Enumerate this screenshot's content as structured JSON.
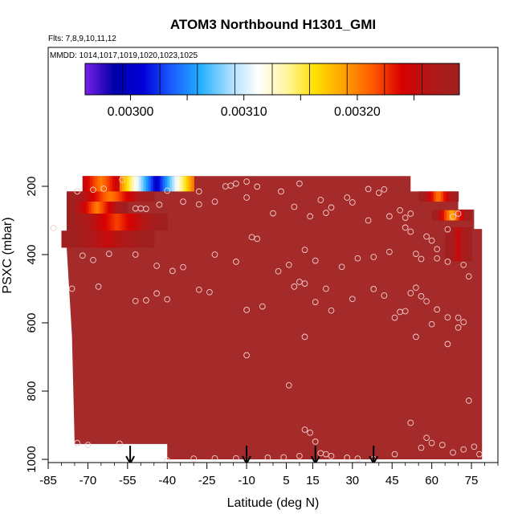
{
  "chart_data": {
    "type": "heatmap",
    "title": "ATOM3 Northbound H1301_GMI",
    "flights_note": "Flts: 7,8,9,10,11,12",
    "dates_note": "MMDD: 1014,1017,1019,1020,1023,1025",
    "xlabel": "Latitude (deg N)",
    "ylabel": "PSXC (mbar)",
    "xlim": [
      -85,
      85
    ],
    "ylim": [
      1000,
      0
    ],
    "x_ticks": [
      -85,
      -70,
      -55,
      -40,
      -25,
      -10,
      5,
      15,
      30,
      45,
      60,
      75
    ],
    "y_ticks": [
      200,
      400,
      600,
      800,
      1000
    ],
    "colorbar": {
      "tick_values": [
        0.003,
        0.0031,
        0.0032
      ],
      "tick_labels": [
        "0.00300",
        "0.00310",
        "0.00320"
      ],
      "colors": [
        "#7a1fe8",
        "#0000a8",
        "#0000d8",
        "#1a5cff",
        "#1fb0ff",
        "#a6dcff",
        "#ffffff",
        "#fff5a0",
        "#ffe000",
        "#ffa000",
        "#ff5800",
        "#d80000",
        "#b01818",
        "#a02020"
      ]
    },
    "background_color": "#a52a2a",
    "gradient_bands": [
      {
        "p": [
          170,
          215
        ],
        "lon": [
          -72,
          -58
        ],
        "value_range": [
          0.0032,
          0.00325
        ]
      },
      {
        "p": [
          170,
          215
        ],
        "lon": [
          -58,
          -30
        ],
        "value_range": [
          0.003,
          0.0032
        ]
      },
      {
        "p": [
          215,
          245
        ],
        "lon": [
          -78,
          -45
        ],
        "value_range": [
          0.0032,
          0.0033
        ]
      },
      {
        "p": [
          245,
          280
        ],
        "lon": [
          -78,
          -55
        ],
        "value_range": [
          0.0032,
          0.0033
        ]
      },
      {
        "p": [
          280,
          330
        ],
        "lon": [
          -78,
          -40
        ],
        "value_range": [
          0.00322,
          0.0033
        ]
      },
      {
        "p": [
          330,
          380
        ],
        "lon": [
          -80,
          -45
        ],
        "value_range": [
          0.00325,
          0.0033
        ]
      },
      {
        "p": [
          215,
          245
        ],
        "lon": [
          55,
          70
        ],
        "value_range": [
          0.0032,
          0.0033
        ]
      },
      {
        "p": [
          270,
          300
        ],
        "lon": [
          60,
          75
        ],
        "value_range": [
          0.00318,
          0.0033
        ]
      },
      {
        "p": [
          320,
          420
        ],
        "lon": [
          65,
          75
        ],
        "value_range": [
          0.00325,
          0.0033
        ]
      }
    ],
    "sample_points": [
      [
        -74,
        215
      ],
      [
        -68,
        210
      ],
      [
        -64,
        207
      ],
      [
        -57,
        181
      ],
      [
        -40,
        213
      ],
      [
        -28,
        215
      ],
      [
        -18,
        200
      ],
      [
        -16,
        198
      ],
      [
        -14,
        192
      ],
      [
        -10,
        186
      ],
      [
        -6,
        201
      ],
      [
        3,
        215
      ],
      [
        10,
        192
      ],
      [
        18,
        240
      ],
      [
        28,
        233
      ],
      [
        36,
        208
      ],
      [
        40,
        219
      ],
      [
        42,
        209
      ],
      [
        48,
        270
      ],
      [
        50,
        292
      ],
      [
        52,
        280
      ],
      [
        -52,
        265
      ],
      [
        -50,
        265
      ],
      [
        -48,
        266
      ],
      [
        -43,
        254
      ],
      [
        -34,
        245
      ],
      [
        -28,
        253
      ],
      [
        -22,
        245
      ],
      [
        -10,
        233
      ],
      [
        0,
        279
      ],
      [
        8,
        260
      ],
      [
        14,
        288
      ],
      [
        20,
        278
      ],
      [
        22,
        262
      ],
      [
        30,
        247
      ],
      [
        36,
        300
      ],
      [
        44,
        288
      ],
      [
        50,
        321
      ],
      [
        52,
        333
      ],
      [
        58,
        347
      ],
      [
        60,
        359
      ],
      [
        62,
        384
      ],
      [
        66,
        326
      ],
      [
        68,
        289
      ],
      [
        70,
        280
      ],
      [
        -83,
        322
      ],
      [
        -72,
        403
      ],
      [
        -68,
        416
      ],
      [
        -62,
        398
      ],
      [
        -52,
        400
      ],
      [
        -44,
        433
      ],
      [
        -38,
        448
      ],
      [
        -34,
        437
      ],
      [
        -22,
        400
      ],
      [
        -14,
        421
      ],
      [
        -8,
        349
      ],
      [
        -6,
        354
      ],
      [
        2,
        449
      ],
      [
        6,
        430
      ],
      [
        12,
        386
      ],
      [
        16,
        418
      ],
      [
        26,
        436
      ],
      [
        32,
        411
      ],
      [
        38,
        407
      ],
      [
        44,
        392
      ],
      [
        54,
        398
      ],
      [
        56,
        413
      ],
      [
        62,
        411
      ],
      [
        66,
        421
      ],
      [
        72,
        430
      ],
      [
        74,
        464
      ],
      [
        -76,
        500
      ],
      [
        -66,
        494
      ],
      [
        -52,
        536
      ],
      [
        -48,
        534
      ],
      [
        -44,
        514
      ],
      [
        -40,
        531
      ],
      [
        -28,
        503
      ],
      [
        -24,
        510
      ],
      [
        -10,
        562
      ],
      [
        -4,
        552
      ],
      [
        8,
        494
      ],
      [
        10,
        480
      ],
      [
        12,
        485
      ],
      [
        16,
        539
      ],
      [
        20,
        500
      ],
      [
        22,
        564
      ],
      [
        30,
        530
      ],
      [
        38,
        501
      ],
      [
        42,
        520
      ],
      [
        46,
        585
      ],
      [
        48,
        568
      ],
      [
        52,
        513
      ],
      [
        54,
        497
      ],
      [
        56,
        522
      ],
      [
        58,
        537
      ],
      [
        62,
        561
      ],
      [
        66,
        584
      ],
      [
        70,
        585
      ],
      [
        72,
        598
      ],
      [
        -10,
        695
      ],
      [
        6,
        783
      ],
      [
        12,
        641
      ],
      [
        50,
        566
      ],
      [
        54,
        641
      ],
      [
        60,
        604
      ],
      [
        66,
        662
      ],
      [
        70,
        614
      ],
      [
        74,
        828
      ],
      [
        -74,
        952
      ],
      [
        -70,
        958
      ],
      [
        -58,
        954
      ],
      [
        -40,
        1003
      ],
      [
        -30,
        998
      ],
      [
        -22,
        997
      ],
      [
        -14,
        997
      ],
      [
        -2,
        995
      ],
      [
        4,
        994
      ],
      [
        10,
        990
      ],
      [
        12,
        913
      ],
      [
        14,
        922
      ],
      [
        16,
        948
      ],
      [
        18,
        982
      ],
      [
        20,
        985
      ],
      [
        22,
        990
      ],
      [
        28,
        995
      ],
      [
        32,
        998
      ],
      [
        38,
        999
      ],
      [
        46,
        985
      ],
      [
        52,
        893
      ],
      [
        56,
        966
      ],
      [
        58,
        937
      ],
      [
        60,
        952
      ],
      [
        64,
        958
      ],
      [
        68,
        980
      ],
      [
        72,
        971
      ],
      [
        76,
        963
      ],
      [
        78,
        985
      ]
    ],
    "arrows_lat": [
      -54,
      -10,
      16,
      38
    ]
  }
}
